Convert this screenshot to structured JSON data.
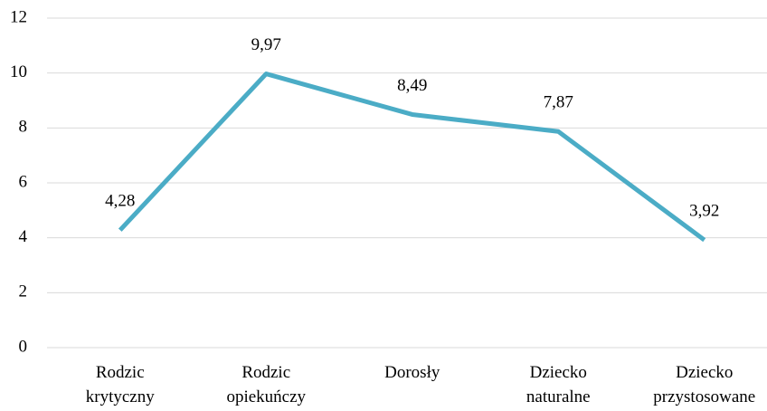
{
  "chart_data": {
    "type": "line",
    "categories": [
      "Rodzic krytyczny",
      "Rodzic opiekuńczy",
      "Dorosły",
      "Dziecko naturalne",
      "Dziecko przystosowane"
    ],
    "series": [
      {
        "values": [
          4.28,
          9.97,
          8.49,
          7.87,
          3.92
        ],
        "value_labels": [
          "4,28",
          "9,97",
          "8,49",
          "7,87",
          "3,92"
        ],
        "color": "#4bacc6"
      }
    ],
    "ylim": [
      0,
      12
    ],
    "yticks": [
      0,
      2,
      4,
      6,
      8,
      10,
      12
    ],
    "grid": true
  }
}
